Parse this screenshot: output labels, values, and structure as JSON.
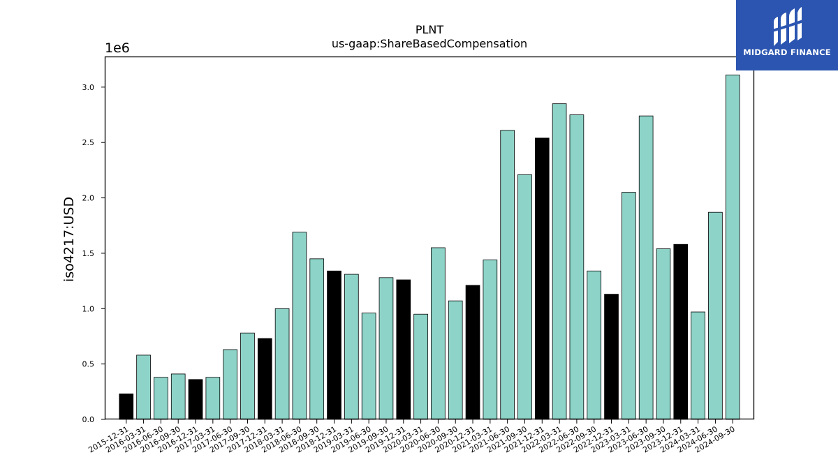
{
  "chart_data": {
    "type": "bar",
    "title": "PLNT",
    "subtitle": "us-gaap:ShareBasedCompensation",
    "ylabel": "iso4217:USD",
    "xlabel": "",
    "y_offset_label": "1e6",
    "ylim": [
      0,
      3270000
    ],
    "yticks": [
      0,
      500000,
      1000000,
      1500000,
      2000000,
      2500000,
      3000000
    ],
    "ytick_labels": [
      "0.0",
      "0.5",
      "1.0",
      "1.5",
      "2.0",
      "2.5",
      "3.0"
    ],
    "grid": false,
    "bar_colors": {
      "quarter": "#8dd3c7",
      "year_end": "#000000"
    },
    "categories": [
      "2015-12-31",
      "2016-03-31",
      "2016-06-30",
      "2016-09-30",
      "2016-12-31",
      "2017-03-31",
      "2017-06-30",
      "2017-09-30",
      "2017-12-31",
      "2018-03-31",
      "2018-06-30",
      "2018-09-30",
      "2018-12-31",
      "2019-03-31",
      "2019-06-30",
      "2019-09-30",
      "2019-12-31",
      "2020-03-31",
      "2020-06-30",
      "2020-09-30",
      "2020-12-31",
      "2021-03-31",
      "2021-06-30",
      "2021-09-30",
      "2021-12-31",
      "2022-03-31",
      "2022-06-30",
      "2022-09-30",
      "2022-12-31",
      "2023-03-31",
      "2023-06-30",
      "2023-09-30",
      "2023-12-31",
      "2024-03-31",
      "2024-06-30",
      "2024-09-30"
    ],
    "values": [
      230000,
      580000,
      380000,
      410000,
      360000,
      380000,
      630000,
      780000,
      730000,
      1000000,
      1690000,
      1450000,
      1340000,
      1310000,
      960000,
      1280000,
      1260000,
      950000,
      1550000,
      1070000,
      1210000,
      1440000,
      2610000,
      2210000,
      2540000,
      2850000,
      2750000,
      1340000,
      1130000,
      2050000,
      2740000,
      1540000,
      1580000,
      970000,
      1870000,
      3110000
    ]
  },
  "logo": {
    "text": "MIDGARD FINANCE",
    "icon": "midgard-logo-icon"
  }
}
